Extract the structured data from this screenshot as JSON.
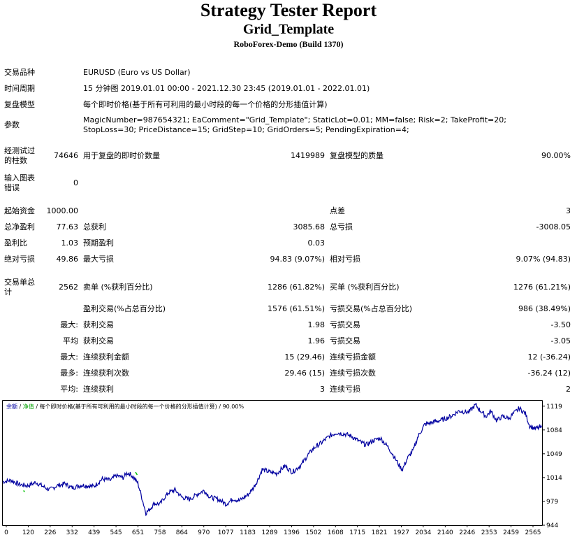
{
  "report": {
    "title": "Strategy Tester Report",
    "expert": "Grid_Template",
    "server": "RoboForex-Demo (Build 1370)"
  },
  "settings": {
    "symbol_label": "交易品种",
    "symbol_value": "EURUSD (Euro vs US Dollar)",
    "period_label": "时间周期",
    "period_value": "15 分钟图 2019.01.01 00:00 - 2021.12.30 23:45 (2019.01.01 - 2022.01.01)",
    "model_label": "复盘模型",
    "model_value": "每个即时价格(基于所有可利用的最小时段的每一个价格的分形插值计算)",
    "params_label": "参数",
    "params_value": "MagicNumber=987654321; EaComment=\"Grid_Template\"; StaticLot=0.01; MM=false; Risk=2; TakeProfit=20; StopLoss=30; PriceDistance=15; GridStep=10; GridOrders=5; PendingExpiration=4;"
  },
  "quality": {
    "bars_label": "经测试过的柱数",
    "bars_value": "74646",
    "ticks_label": "用于复盘的即时价数量",
    "ticks_value": "1419989",
    "quality_label": "复盘模型的质量",
    "quality_value": "90.00%",
    "errors_label": "输入图表错误",
    "errors_value": "0"
  },
  "results": {
    "deposit_label": "起始资金",
    "deposit_value": "1000.00",
    "spread_label": "点差",
    "spread_value": "3",
    "net_label": "总净盈利",
    "net_value": "77.63",
    "gross_profit_label": "总获利",
    "gross_profit_value": "3085.68",
    "gross_loss_label": "总亏损",
    "gross_loss_value": "-3008.05",
    "pf_label": "盈利比",
    "pf_value": "1.03",
    "payoff_label": "预期盈利",
    "payoff_value": "0.03",
    "abs_dd_label": "绝对亏损",
    "abs_dd_value": "49.86",
    "max_dd_label": "最大亏损",
    "max_dd_value": "94.83 (9.07%)",
    "rel_dd_label": "相对亏损",
    "rel_dd_value": "9.07% (94.83)",
    "trades_label": "交易单总计",
    "trades_value": "2562",
    "short_label": "卖单 (%获利百分比)",
    "short_value": "1286 (61.82%)",
    "long_label": "买单 (%获利百分比)",
    "long_value": "1276 (61.21%)",
    "win_label": "盈利交易(%占总百分比)",
    "win_value": "1576 (61.51%)",
    "loss_label": "亏损交易(%占总百分比)",
    "loss_value": "986 (38.49%)",
    "largest_prefix": "最大:",
    "largest_win_label": "获利交易",
    "largest_win_value": "1.98",
    "largest_loss_label": "亏损交易",
    "largest_loss_value": "-3.50",
    "average_prefix": "平均",
    "avg_win_label": "获利交易",
    "avg_win_value": "1.96",
    "avg_loss_label": "亏损交易",
    "avg_loss_value": "-3.05",
    "max_prefix": "最大:",
    "max_cons_wins_label": "连续获利金额",
    "max_cons_wins_value": "15 (29.46)",
    "max_cons_losses_label": "连续亏损金额",
    "max_cons_losses_value": "12 (-36.24)",
    "most_prefix": "最多:",
    "most_cons_profit_label": "连续获利次数",
    "most_cons_profit_value": "29.46 (15)",
    "most_cons_loss_label": "连续亏损次数",
    "most_cons_loss_value": "-36.24 (12)",
    "avg_cons_prefix": "平均:",
    "avg_cons_wins_label": "连续获利",
    "avg_cons_wins_value": "3",
    "avg_cons_losses_label": "连续亏损",
    "avg_cons_losses_value": "2"
  },
  "chart_legend": {
    "balance": "余额",
    "sep1": " / ",
    "equity": "净值",
    "rest": " / 每个即时价格(基于所有可利用的最小时段的每一个价格的分形插值计算) / 90.00%"
  },
  "chart_data": {
    "type": "line",
    "x_ticks": [
      "0",
      "120",
      "226",
      "332",
      "439",
      "545",
      "651",
      "758",
      "864",
      "970",
      "1077",
      "1183",
      "1289",
      "1396",
      "1502",
      "1608",
      "1715",
      "1821",
      "1927",
      "2034",
      "2140",
      "2246",
      "2353",
      "2459",
      "2565"
    ],
    "y_ticks": [
      "1119",
      "1084",
      "1049",
      "1014",
      "979",
      "944"
    ],
    "ylim": [
      944,
      1128
    ],
    "xlim": [
      0,
      2600
    ],
    "series": [
      {
        "name": "余额",
        "color": "#0000a0",
        "points": [
          [
            0,
            1008
          ],
          [
            40,
            1010
          ],
          [
            80,
            1004
          ],
          [
            120,
            1002
          ],
          [
            160,
            1007
          ],
          [
            200,
            1000
          ],
          [
            226,
            996
          ],
          [
            260,
            1002
          ],
          [
            300,
            1005
          ],
          [
            332,
            999
          ],
          [
            380,
            1003
          ],
          [
            439,
            1001
          ],
          [
            480,
            1012
          ],
          [
            520,
            1010
          ],
          [
            545,
            1017
          ],
          [
            580,
            1014
          ],
          [
            600,
            1021
          ],
          [
            620,
            1018
          ],
          [
            651,
            1006
          ],
          [
            670,
            985
          ],
          [
            690,
            962
          ],
          [
            710,
            968
          ],
          [
            730,
            976
          ],
          [
            758,
            975
          ],
          [
            780,
            985
          ],
          [
            800,
            992
          ],
          [
            830,
            996
          ],
          [
            864,
            985
          ],
          [
            900,
            982
          ],
          [
            940,
            990
          ],
          [
            970,
            995
          ],
          [
            1000,
            985
          ],
          [
            1040,
            982
          ],
          [
            1077,
            975
          ],
          [
            1110,
            983
          ],
          [
            1140,
            980
          ],
          [
            1183,
            989
          ],
          [
            1210,
            1000
          ],
          [
            1230,
            1011
          ],
          [
            1250,
            1026
          ],
          [
            1289,
            1022
          ],
          [
            1320,
            1020
          ],
          [
            1360,
            1031
          ],
          [
            1396,
            1022
          ],
          [
            1440,
            1033
          ],
          [
            1470,
            1047
          ],
          [
            1502,
            1058
          ],
          [
            1540,
            1066
          ],
          [
            1570,
            1074
          ],
          [
            1608,
            1080
          ],
          [
            1650,
            1078
          ],
          [
            1680,
            1075
          ],
          [
            1715,
            1068
          ],
          [
            1750,
            1062
          ],
          [
            1790,
            1069
          ],
          [
            1821,
            1072
          ],
          [
            1860,
            1058
          ],
          [
            1890,
            1043
          ],
          [
            1915,
            1030
          ],
          [
            1927,
            1026
          ],
          [
            1950,
            1042
          ],
          [
            1980,
            1055
          ],
          [
            2000,
            1073
          ],
          [
            2034,
            1092
          ],
          [
            2080,
            1096
          ],
          [
            2120,
            1099
          ],
          [
            2160,
            1104
          ],
          [
            2200,
            1112
          ],
          [
            2246,
            1110
          ],
          [
            2280,
            1121
          ],
          [
            2300,
            1113
          ],
          [
            2330,
            1104
          ],
          [
            2353,
            1112
          ],
          [
            2380,
            1098
          ],
          [
            2410,
            1104
          ],
          [
            2440,
            1101
          ],
          [
            2459,
            1107
          ],
          [
            2490,
            1116
          ],
          [
            2520,
            1108
          ],
          [
            2540,
            1090
          ],
          [
            2565,
            1086
          ],
          [
            2600,
            1088
          ]
        ]
      },
      {
        "name": "净值",
        "color": "#00c000",
        "points": [
          [
            100,
            995
          ],
          [
            105,
            993
          ],
          [
            640,
            1022
          ],
          [
            648,
            1018
          ]
        ]
      }
    ]
  }
}
